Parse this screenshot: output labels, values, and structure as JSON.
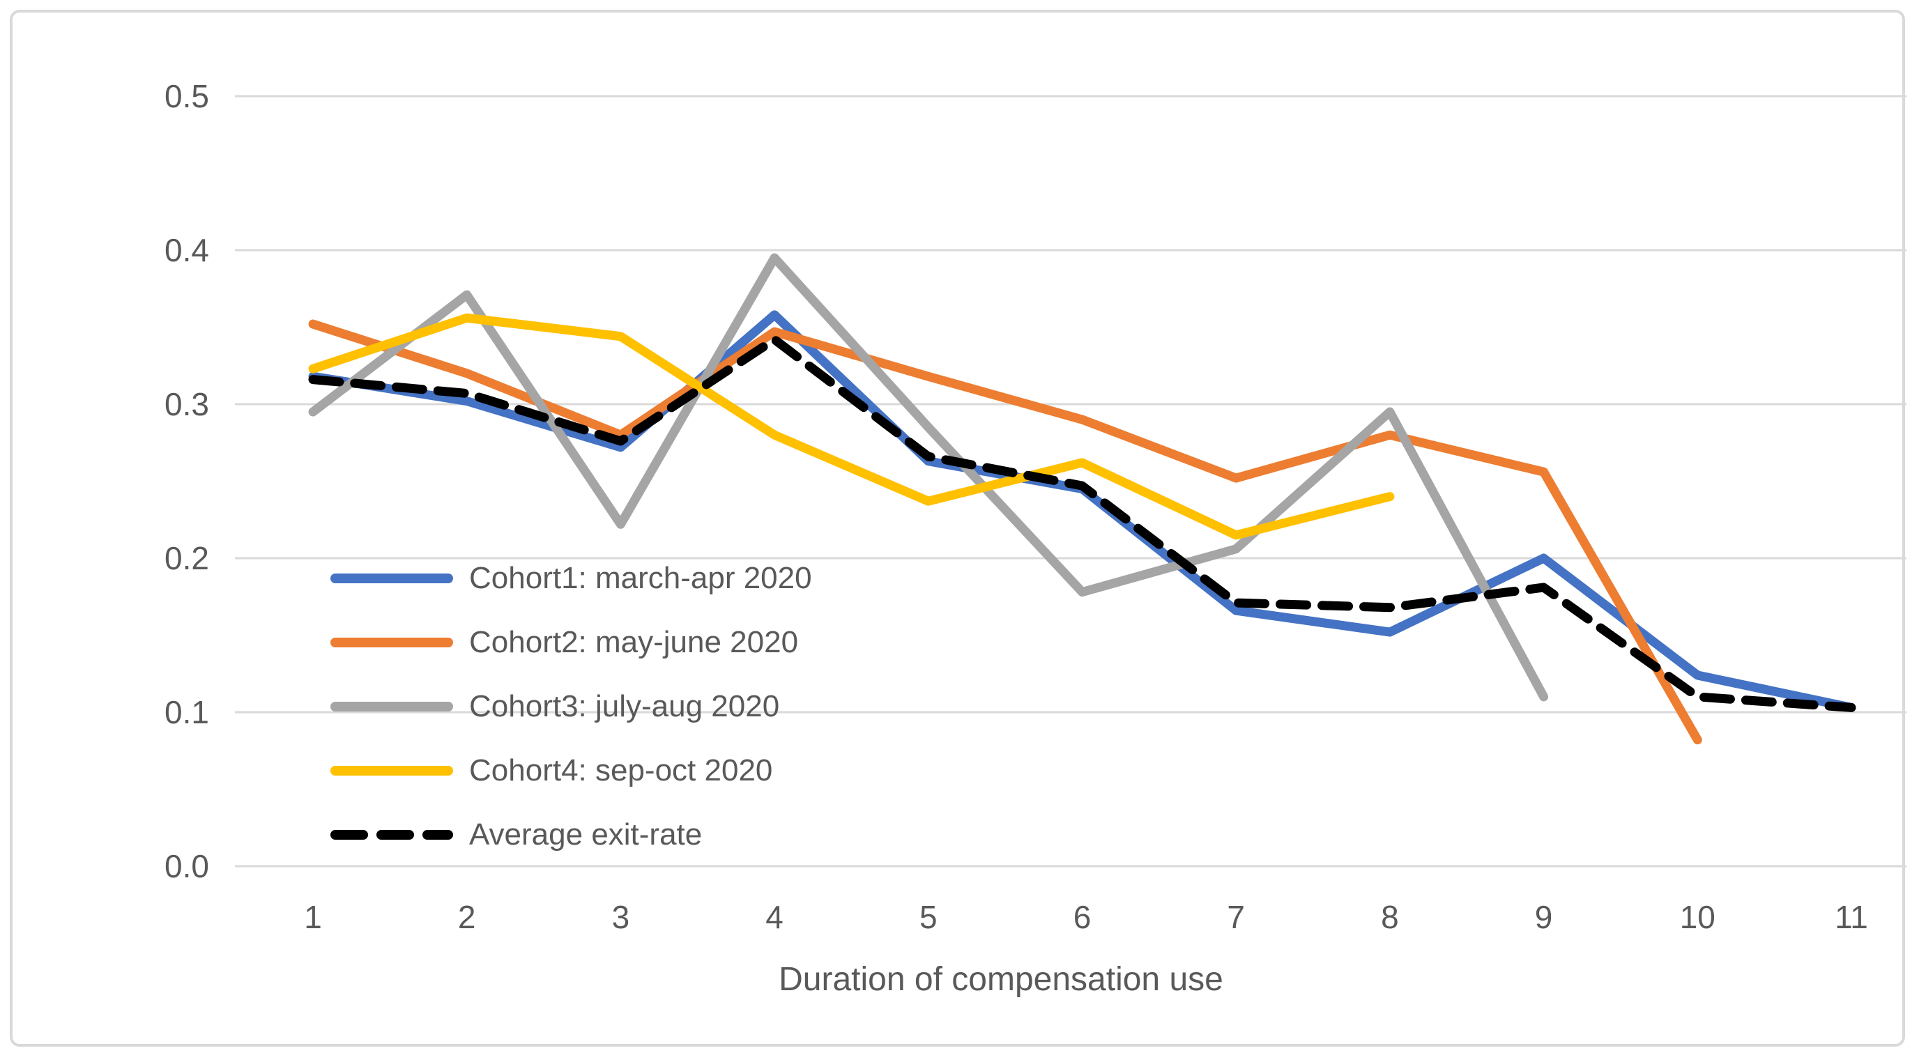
{
  "chart_data": {
    "type": "line",
    "x": [
      1,
      2,
      3,
      4,
      5,
      6,
      7,
      8,
      9,
      10,
      11
    ],
    "xtick_labels": [
      "1",
      "2",
      "3",
      "4",
      "5",
      "6",
      "7",
      "8",
      "9",
      "10",
      "11"
    ],
    "yticks": [
      0.0,
      0.1,
      0.2,
      0.3,
      0.4,
      0.5
    ],
    "ytick_labels": [
      "0.0",
      "0.1",
      "0.2",
      "0.3",
      "0.4",
      "0.5"
    ],
    "ylim": [
      0.0,
      0.5
    ],
    "xlabel": "Duration of compensation use",
    "ylabel": "",
    "title": "",
    "grid": true,
    "legend_position": "inside-left",
    "series": [
      {
        "name": "Cohort1: march-apr 2020",
        "color": "#4472C4",
        "dash": false,
        "values": [
          0.318,
          0.302,
          0.272,
          0.358,
          0.263,
          0.245,
          0.166,
          0.152,
          0.2,
          0.124,
          0.103
        ]
      },
      {
        "name": "Cohort2: may-june 2020",
        "color": "#ED7D31",
        "dash": false,
        "values": [
          0.352,
          0.32,
          0.28,
          0.347,
          0.318,
          0.29,
          0.252,
          0.28,
          0.256,
          0.082,
          null
        ]
      },
      {
        "name": "Cohort3: july-aug 2020",
        "color": "#A5A5A5",
        "dash": false,
        "values": [
          0.295,
          0.371,
          0.222,
          0.395,
          0.285,
          0.178,
          0.206,
          0.295,
          0.11,
          null,
          null
        ]
      },
      {
        "name": "Cohort4: sep-oct 2020",
        "color": "#FFC000",
        "dash": false,
        "values": [
          0.323,
          0.356,
          0.344,
          0.28,
          0.237,
          0.262,
          0.215,
          0.24,
          null,
          null,
          null
        ]
      },
      {
        "name": "Average exit-rate",
        "color": "#000000",
        "dash": true,
        "values": [
          0.316,
          0.307,
          0.276,
          0.342,
          0.266,
          0.247,
          0.171,
          0.168,
          0.181,
          0.11,
          0.103
        ]
      }
    ]
  },
  "colors": {
    "grid": "#D9D9D9",
    "frame": "#D9D9D9",
    "tick_text": "#595959",
    "title_text": "#595959"
  }
}
